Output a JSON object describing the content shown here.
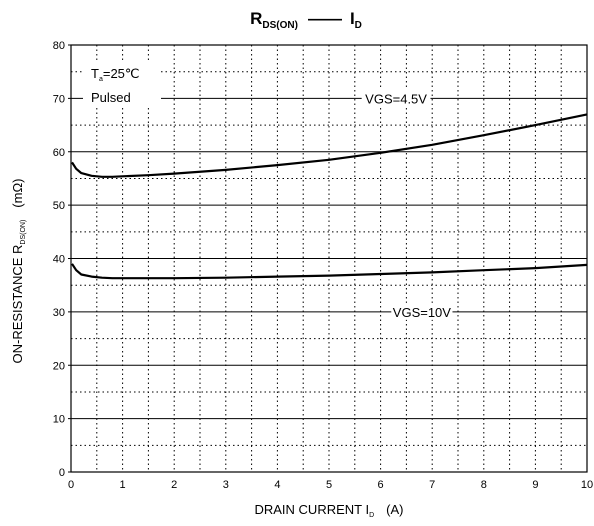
{
  "chart_data": {
    "type": "line",
    "title": {
      "left_main": "R",
      "left_sub": "DS(ON)",
      "right_main": "I",
      "right_sub": "D"
    },
    "xlabel": {
      "main": "DRAIN CURRENT   I",
      "sub": "D",
      "unit": "(A)"
    },
    "ylabel": {
      "main": "ON-RESISTANCE   R",
      "sub": "DS(ON)",
      "unit": "(mΩ)"
    },
    "xlim": [
      0,
      10
    ],
    "ylim": [
      0,
      80
    ],
    "x_ticks": [
      "0",
      "1",
      "2",
      "3",
      "4",
      "5",
      "6",
      "7",
      "8",
      "9",
      "10"
    ],
    "y_ticks": [
      "0",
      "10",
      "20",
      "30",
      "40",
      "50",
      "60",
      "70",
      "80"
    ],
    "grid": true,
    "annotations": {
      "ta_main": "T",
      "ta_sub": "a",
      "ta_value": "=25℃",
      "pulsed": "Pulsed"
    },
    "series": [
      {
        "name": "VGS=4.5V",
        "x": [
          0.02,
          0.1,
          0.2,
          0.4,
          0.6,
          0.8,
          1,
          1.5,
          2,
          3,
          4,
          5,
          6,
          7,
          8,
          9,
          10
        ],
        "y": [
          58.0,
          56.8,
          56.0,
          55.5,
          55.3,
          55.3,
          55.4,
          55.6,
          55.9,
          56.6,
          57.5,
          58.5,
          59.8,
          61.3,
          63.1,
          65.0,
          67.0
        ]
      },
      {
        "name": "VGS=10V",
        "x": [
          0.02,
          0.1,
          0.2,
          0.4,
          0.6,
          0.8,
          1,
          1.5,
          2,
          3,
          4,
          5,
          6,
          7,
          8,
          9,
          10
        ],
        "y": [
          39.0,
          37.8,
          37.0,
          36.6,
          36.4,
          36.3,
          36.3,
          36.3,
          36.3,
          36.4,
          36.6,
          36.8,
          37.1,
          37.4,
          37.8,
          38.2,
          38.8
        ]
      }
    ]
  }
}
